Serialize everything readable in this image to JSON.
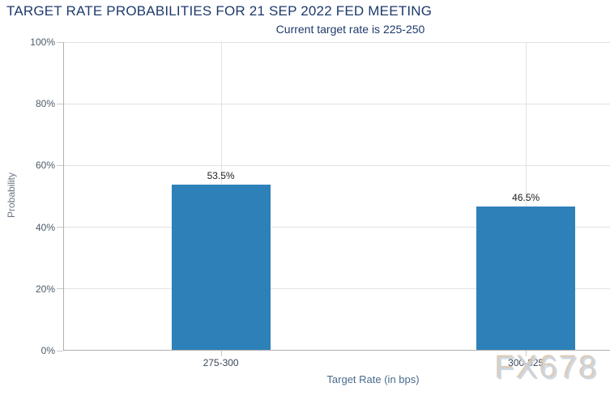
{
  "page": {
    "title": "TARGET RATE PROBABILITIES FOR 21 SEP 2022 FED MEETING",
    "subtitle": "Current target rate is 225-250",
    "watermark": "FX678"
  },
  "chart_data": {
    "type": "bar",
    "title": "TARGET RATE PROBABILITIES FOR 21 SEP 2022 FED MEETING",
    "subtitle": "Current target rate is 225-250",
    "categories": [
      "275-300",
      "300-325"
    ],
    "values": [
      53.5,
      46.5
    ],
    "value_labels": [
      "53.5%",
      "46.5%"
    ],
    "xlabel": "Target Rate (in bps)",
    "ylabel": "Probability",
    "ylim": [
      0,
      100
    ],
    "ytick_step": 20,
    "ytick_labels": [
      "0%",
      "20%",
      "40%",
      "60%",
      "80%",
      "100%"
    ],
    "grid": true,
    "legend": "none",
    "bar_color": "#2e80b9"
  },
  "colors": {
    "title": "#1e3a6b",
    "bar": "#2e80b9",
    "gridline": "#e2e2e2",
    "axis": "#b0b0b0",
    "watermark": "#c7d2df"
  }
}
